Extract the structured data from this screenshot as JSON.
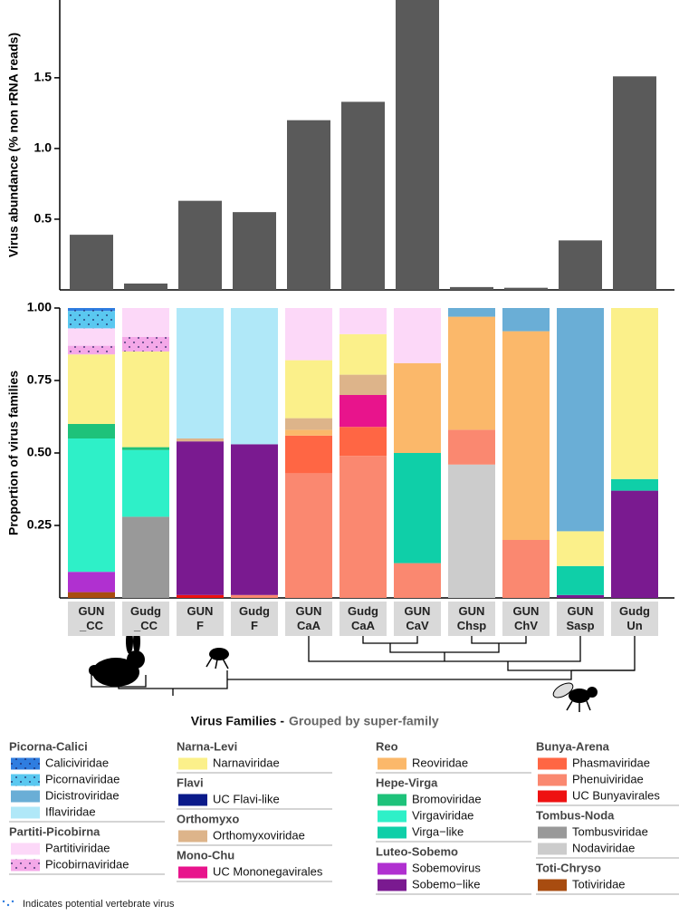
{
  "chart_data": [
    {
      "type": "bar",
      "ylabel": "Virus abundance (% non rRNA reads)",
      "color": "#5a5a5a",
      "values": [
        0.39,
        0.045,
        0.63,
        0.55,
        1.2,
        1.33,
        2.05,
        0.02,
        0.015,
        0.35,
        1.51
      ],
      "ylim": [
        0,
        2.05
      ],
      "yticks": [
        0.5,
        {
          "value": 1,
          "label": "1.0"
        },
        1.5
      ]
    },
    {
      "type": "stacked_bar",
      "ylabel": "Proportion of virus families",
      "categories": [
        "GUN _CC",
        "Gudg _CC",
        "GUN F",
        "Gudg F",
        "GUN CaA",
        "Gudg CaA",
        "GUN CaV",
        "GUN Chsp",
        "GUN ChV",
        "GUN Sasp",
        "Gudg Un"
      ],
      "ylim": [
        0,
        1
      ],
      "yticks": [
        0.25,
        {
          "value": 0.5,
          "label": "0.50"
        },
        0.75,
        {
          "value": 1,
          "label": "1.00"
        }
      ],
      "legend_title": "Virus Families -",
      "legend_subtitle": "Grouped by super-family",
      "groups": [
        {
          "name": "Picorna-Calici",
          "series": [
            {
              "name": "Caliciviridae",
              "color": "#2f7de0",
              "dotted": true,
              "values": [
                0.01,
                0,
                0,
                0,
                0,
                0,
                0,
                0,
                0,
                0,
                0
              ]
            },
            {
              "name": "Picornaviridae",
              "color": "#5ac8f0",
              "dotted": true,
              "values": [
                0.06,
                0,
                0,
                0,
                0,
                0,
                0,
                0,
                0,
                0,
                0
              ]
            },
            {
              "name": "Dicistroviridae",
              "color": "#6aaed6",
              "values": [
                0,
                0,
                0,
                0,
                0,
                0,
                0,
                0.03,
                0.08,
                0.77,
                0
              ]
            },
            {
              "name": "Iflaviridae",
              "color": "#b0e8f8",
              "values": [
                0,
                0,
                0.45,
                0.47,
                0,
                0,
                0,
                0,
                0,
                0,
                0
              ]
            }
          ]
        },
        {
          "name": "Partiti-Picobirna",
          "series": [
            {
              "name": "Partitiviridae",
              "color": "#fcd8f8",
              "values": [
                0.06,
                0.1,
                0,
                0,
                0.18,
                0.09,
                0.19,
                0,
                0,
                0,
                0
              ]
            },
            {
              "name": "Picobirnaviridae",
              "color": "#f4a8e8",
              "dotted": true,
              "values": [
                0.03,
                0.05,
                0,
                0,
                0,
                0,
                0,
                0,
                0,
                0,
                0
              ]
            }
          ]
        },
        {
          "name": "Narna-Levi",
          "series": [
            {
              "name": "Narnaviridae",
              "color": "#fbf08a",
              "values": [
                0.24,
                0.33,
                0,
                0,
                0.2,
                0.14,
                0,
                0,
                0,
                0.12,
                0.59
              ]
            }
          ]
        },
        {
          "name": "Flavi",
          "series": [
            {
              "name": "UC Flavi-like",
              "color": "#0a1a8a",
              "values": [
                0,
                0,
                0,
                0,
                0,
                0,
                0,
                0,
                0,
                0,
                0
              ]
            }
          ]
        },
        {
          "name": "Orthomyxo",
          "series": [
            {
              "name": "Orthomyxoviridae",
              "color": "#ddb48a",
              "values": [
                0,
                0,
                0.01,
                0,
                0.04,
                0.07,
                0,
                0,
                0,
                0,
                0
              ]
            }
          ]
        },
        {
          "name": "Mono-Chu",
          "series": [
            {
              "name": "UC Mononegavirales",
              "color": "#e8148c",
              "values": [
                0,
                0,
                0,
                0,
                0,
                0.11,
                0,
                0,
                0,
                0,
                0
              ]
            }
          ]
        },
        {
          "name": "Reo",
          "series": [
            {
              "name": "Reoviridae",
              "color": "#fbb86a",
              "values": [
                0,
                0,
                0,
                0,
                0.02,
                0,
                0.31,
                0.39,
                0.72,
                0,
                0
              ]
            }
          ]
        },
        {
          "name": "Hepe-Virga",
          "series": [
            {
              "name": "Bromoviridae",
              "color": "#1ec27a",
              "values": [
                0.05,
                0.01,
                0,
                0,
                0,
                0,
                0,
                0,
                0,
                0,
                0
              ]
            },
            {
              "name": "Virgaviridae",
              "color": "#2ef0c8",
              "values": [
                0.46,
                0.23,
                0,
                0,
                0,
                0,
                0,
                0,
                0,
                0,
                0
              ]
            },
            {
              "name": "Virga−like",
              "color": "#0fcfa8",
              "values": [
                0,
                0,
                0,
                0,
                0,
                0,
                0.38,
                0,
                0,
                0.1,
                0.04
              ]
            }
          ]
        },
        {
          "name": "Luteo-Sobemo",
          "series": [
            {
              "name": "Sobemovirus",
              "color": "#b030d0",
              "values": [
                0.07,
                0,
                0,
                0,
                0,
                0,
                0,
                0,
                0,
                0,
                0
              ]
            },
            {
              "name": "Sobemo−like",
              "color": "#7a1a90",
              "values": [
                0,
                0,
                0.53,
                0.52,
                0,
                0,
                0,
                0,
                0,
                0.01,
                0.37
              ]
            }
          ]
        },
        {
          "name": "Bunya-Arena",
          "series": [
            {
              "name": "Phasmaviridae",
              "color": "#ff6644",
              "values": [
                0,
                0,
                0,
                0,
                0.13,
                0.1,
                0,
                0,
                0,
                0,
                0
              ]
            },
            {
              "name": "Phenuiviridae",
              "color": "#fa8870",
              "values": [
                0,
                0,
                0,
                0.01,
                0.43,
                0.49,
                0.12,
                0.12,
                0.2,
                0,
                0
              ]
            },
            {
              "name": "UC Bunyavirales",
              "color": "#ee1111",
              "values": [
                0,
                0,
                0.01,
                0,
                0,
                0,
                0,
                0,
                0,
                0,
                0
              ]
            }
          ]
        },
        {
          "name": "Tombus-Noda",
          "series": [
            {
              "name": "Tombusviridae",
              "color": "#999999",
              "values": [
                0,
                0.28,
                0,
                0,
                0,
                0,
                0,
                0,
                0,
                0,
                0
              ]
            },
            {
              "name": "Nodaviridae",
              "color": "#cccccc",
              "values": [
                0,
                0,
                0,
                0,
                0,
                0,
                0,
                0.46,
                0,
                0,
                0
              ]
            }
          ]
        },
        {
          "name": "Toti-Chryso",
          "series": [
            {
              "name": "Totiviridae",
              "color": "#a84c10",
              "values": [
                0.02,
                0,
                0,
                0,
                0,
                0,
                0,
                0,
                0,
                0,
                0
              ]
            }
          ]
        }
      ]
    }
  ],
  "note": "Indicates potential vertebrate virus"
}
